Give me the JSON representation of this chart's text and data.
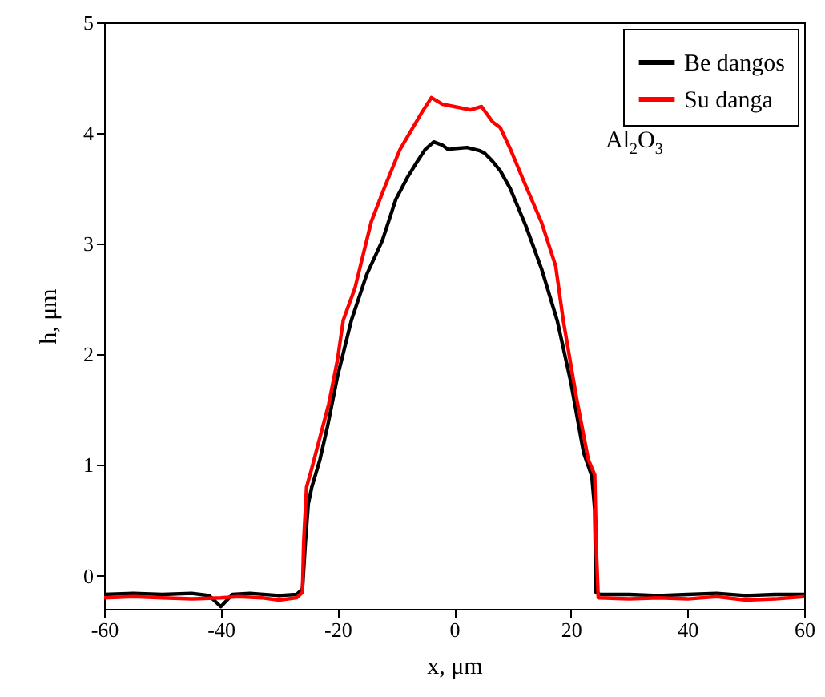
{
  "chart_data": {
    "type": "line",
    "xlabel": "x, μm",
    "ylabel": "h, μm",
    "xlim": [
      -60,
      60
    ],
    "xticks": [
      -60,
      -40,
      -20,
      0,
      20,
      40,
      60
    ],
    "ylim": [
      -0.3,
      5
    ],
    "yticks": [
      0,
      1,
      2,
      3,
      4,
      5
    ],
    "legend": "top right",
    "line_style": "solid",
    "annotations": [
      "Al$_{2}$O$_{3}$"
    ],
    "series": [
      {
        "name": "Be dangos",
        "color": "#000000",
        "x": [
          -60,
          -55,
          -50,
          -45,
          -42,
          -40,
          -38,
          -35,
          -30,
          -27,
          -26,
          -25.5,
          -25,
          -24.4,
          -23,
          -21.7,
          -20,
          -17.6,
          -15,
          -12.3,
          -10,
          -8,
          -6.6,
          -5,
          -3.5,
          -2,
          -1,
          0,
          2.2,
          4.4,
          5.2,
          6.5,
          7.9,
          9.6,
          12.3,
          15,
          17.7,
          20,
          22.2,
          23.6,
          24.1,
          24.3,
          25,
          30,
          35,
          40,
          45,
          50,
          55,
          60
        ],
        "values": [
          -0.17,
          -0.16,
          -0.17,
          -0.16,
          -0.18,
          -0.28,
          -0.17,
          -0.16,
          -0.18,
          -0.17,
          -0.12,
          0.3,
          0.65,
          0.8,
          1.05,
          1.35,
          1.8,
          2.31,
          2.72,
          3.03,
          3.4,
          3.6,
          3.72,
          3.85,
          3.92,
          3.89,
          3.85,
          3.86,
          3.87,
          3.84,
          3.82,
          3.75,
          3.66,
          3.5,
          3.16,
          2.77,
          2.3,
          1.75,
          1.11,
          0.9,
          0.6,
          -0.15,
          -0.17,
          -0.17,
          -0.18,
          -0.17,
          -0.16,
          -0.18,
          -0.17,
          -0.17
        ]
      },
      {
        "name": "Su danga",
        "color": "#ff0000",
        "x": [
          -60,
          -55,
          -50,
          -45,
          -40,
          -37,
          -33,
          -30,
          -27,
          -26,
          -25.8,
          -25.3,
          -24.5,
          -23,
          -21.5,
          -20,
          -19,
          -17,
          -14.2,
          -12,
          -9.3,
          -7.4,
          -5.5,
          -3.9,
          -2,
          0,
          2.8,
          4.7,
          6.6,
          7.9,
          9.6,
          12.3,
          15,
          17.4,
          18.7,
          21,
          23,
          24.1,
          24.4,
          24.7,
          30,
          35,
          40,
          45,
          50,
          55,
          60
        ],
        "values": [
          -0.2,
          -0.19,
          -0.2,
          -0.21,
          -0.2,
          -0.19,
          -0.2,
          -0.22,
          -0.2,
          -0.15,
          0.3,
          0.8,
          0.95,
          1.25,
          1.55,
          1.95,
          2.31,
          2.6,
          3.2,
          3.5,
          3.85,
          4.02,
          4.19,
          4.32,
          4.26,
          4.24,
          4.21,
          4.24,
          4.1,
          4.05,
          3.86,
          3.52,
          3.19,
          2.8,
          2.31,
          1.6,
          1.05,
          0.91,
          0.2,
          -0.2,
          -0.21,
          -0.2,
          -0.21,
          -0.19,
          -0.22,
          -0.21,
          -0.19
        ]
      }
    ]
  }
}
